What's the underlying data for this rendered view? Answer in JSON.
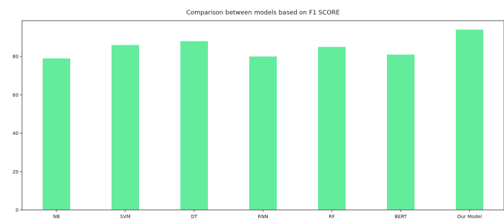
{
  "chart_data": {
    "type": "bar",
    "title": "Comparison between models based on F1 SCORE",
    "xlabel": "",
    "ylabel": "",
    "categories": [
      "NB",
      "SVM",
      "DT",
      "RNN",
      "RF",
      "BERT",
      "Our Model"
    ],
    "values": [
      79,
      86,
      88,
      80,
      85,
      81,
      94
    ],
    "ylim": [
      0,
      98.7
    ],
    "yticks": [
      0,
      20,
      40,
      60,
      80
    ],
    "bar_color": "#63ec9b",
    "grid": false,
    "legend": "none"
  }
}
